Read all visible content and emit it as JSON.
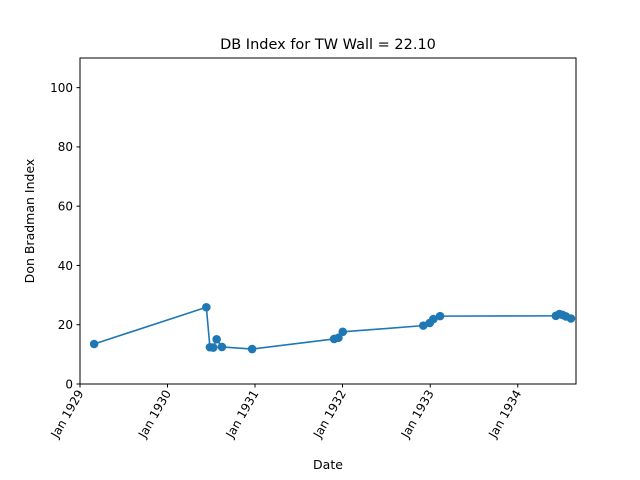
{
  "chart_data": {
    "type": "line",
    "title": "DB Index for TW Wall = 22.10",
    "xlabel": "Date",
    "ylabel": "Don Bradman Index",
    "ylim": [
      0,
      110
    ],
    "xlim": [
      "1929-01-01",
      "1934-09-01"
    ],
    "yticks": [
      0,
      20,
      40,
      60,
      80,
      100
    ],
    "xticks": [
      {
        "date": "1929-01-01",
        "label": "Jan 1929"
      },
      {
        "date": "1930-01-01",
        "label": "Jan 1930"
      },
      {
        "date": "1931-01-01",
        "label": "Jan 1931"
      },
      {
        "date": "1932-01-01",
        "label": "Jan 1932"
      },
      {
        "date": "1933-01-01",
        "label": "Jan 1933"
      },
      {
        "date": "1934-01-01",
        "label": "Jan 1934"
      }
    ],
    "grid": false,
    "color": "#1f77b4",
    "markers": true,
    "series": [
      {
        "points": [
          {
            "x": "1929-03-01",
            "y": 13.5
          },
          {
            "x": "1930-06-12",
            "y": 25.9
          },
          {
            "x": "1930-06-27",
            "y": 12.4
          },
          {
            "x": "1930-07-11",
            "y": 12.3
          },
          {
            "x": "1930-07-25",
            "y": 15.1
          },
          {
            "x": "1930-08-16",
            "y": 12.5
          },
          {
            "x": "1930-12-20",
            "y": 11.8
          },
          {
            "x": "1931-11-27",
            "y": 15.2
          },
          {
            "x": "1931-12-15",
            "y": 15.6
          },
          {
            "x": "1932-01-02",
            "y": 17.6
          },
          {
            "x": "1932-12-03",
            "y": 19.7
          },
          {
            "x": "1932-12-30",
            "y": 20.6
          },
          {
            "x": "1933-01-14",
            "y": 21.9
          },
          {
            "x": "1933-02-11",
            "y": 22.9
          },
          {
            "x": "1934-06-09",
            "y": 23.0
          },
          {
            "x": "1934-06-24",
            "y": 23.6
          },
          {
            "x": "1934-07-07",
            "y": 23.3
          },
          {
            "x": "1934-07-21",
            "y": 22.8
          },
          {
            "x": "1934-08-11",
            "y": 22.1
          }
        ]
      }
    ]
  }
}
